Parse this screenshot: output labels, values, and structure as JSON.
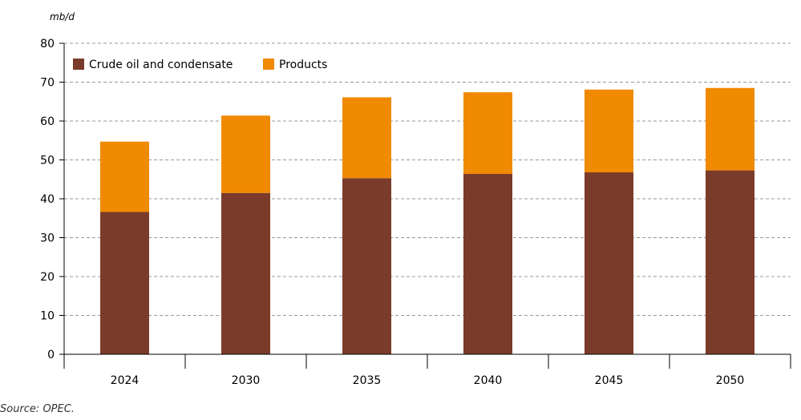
{
  "unit_label": "mb/d",
  "source": "Source: OPEC.",
  "colors": {
    "crude": "#7b3b2a",
    "products": "#f08a00",
    "grid": "#999999",
    "axis": "#000000"
  },
  "chart_data": {
    "type": "bar",
    "stacked": true,
    "categories": [
      "2024",
      "2030",
      "2035",
      "2040",
      "2045",
      "2050"
    ],
    "series": [
      {
        "name": "Crude oil and condensate",
        "values": [
          36.6,
          41.5,
          45.3,
          46.4,
          46.8,
          47.3
        ]
      },
      {
        "name": "Products",
        "values": [
          18.1,
          19.9,
          20.8,
          21.0,
          21.3,
          21.2
        ]
      }
    ],
    "ylim": [
      0,
      80
    ],
    "yticks": [
      0,
      10,
      20,
      30,
      40,
      50,
      60,
      70,
      80
    ],
    "grid": "horizontal dashed",
    "legend_position": "top-left",
    "title": "",
    "xlabel": "",
    "ylabel": ""
  }
}
